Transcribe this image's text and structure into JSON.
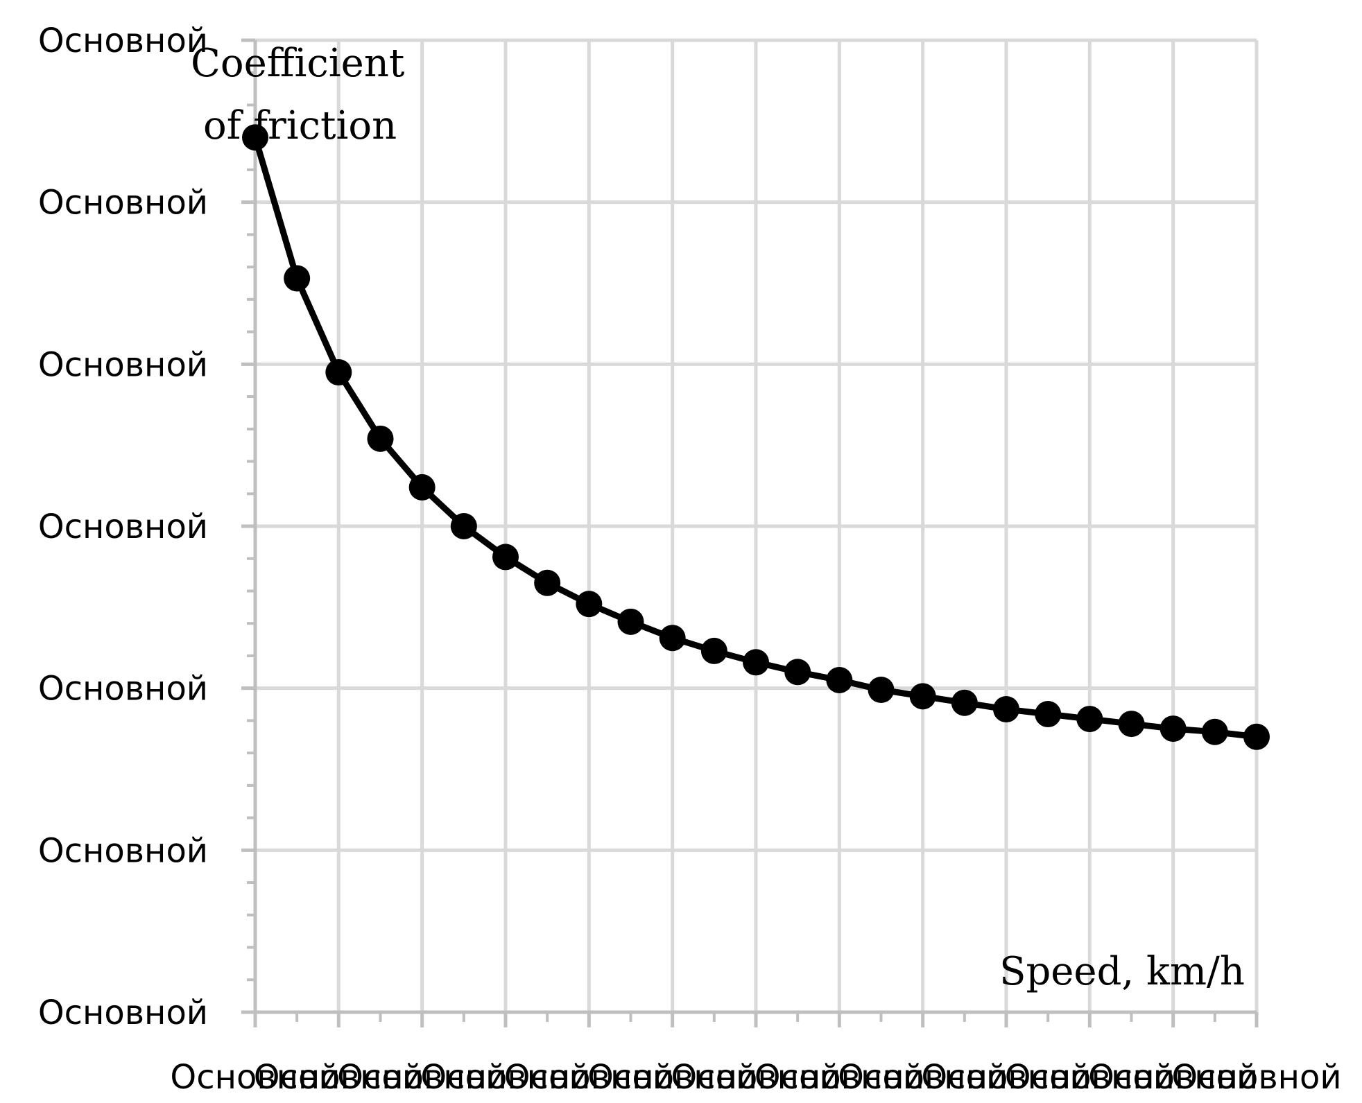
{
  "chart_data": {
    "type": "line",
    "title": "",
    "ylabel_lines": [
      "Coefficient",
      "of friction"
    ],
    "xlabel": "Speed, km/h",
    "y_tick_labels": [
      "Основной",
      "Основной",
      "Основной",
      "Основной",
      "Основной",
      "Основной",
      "Основной"
    ],
    "x_tick_labels": [
      "Основной",
      "Основной",
      "Основной",
      "Основной",
      "Основной",
      "Основной",
      "Основной",
      "Основной",
      "Основной",
      "Основной",
      "Основной",
      "Основной",
      "Основной"
    ],
    "xlim": [
      0,
      120
    ],
    "ylim": [
      0,
      0.6
    ],
    "grid": true,
    "series": [
      {
        "x": [
          0,
          5,
          10,
          15,
          20,
          25,
          30,
          35,
          40,
          45,
          50,
          55,
          60,
          65,
          70,
          75,
          80,
          85,
          90,
          95,
          100,
          105,
          110,
          115,
          120
        ],
        "values": [
          0.54,
          0.453,
          0.395,
          0.354,
          0.324,
          0.3,
          0.281,
          0.265,
          0.252,
          0.241,
          0.231,
          0.223,
          0.216,
          0.21,
          0.205,
          0.199,
          0.195,
          0.191,
          0.187,
          0.184,
          0.181,
          0.178,
          0.175,
          0.173,
          0.17
        ]
      }
    ],
    "colors": {
      "line": "#000000",
      "grid": "#d9d9d9",
      "axis": "#bfbfbf"
    }
  }
}
